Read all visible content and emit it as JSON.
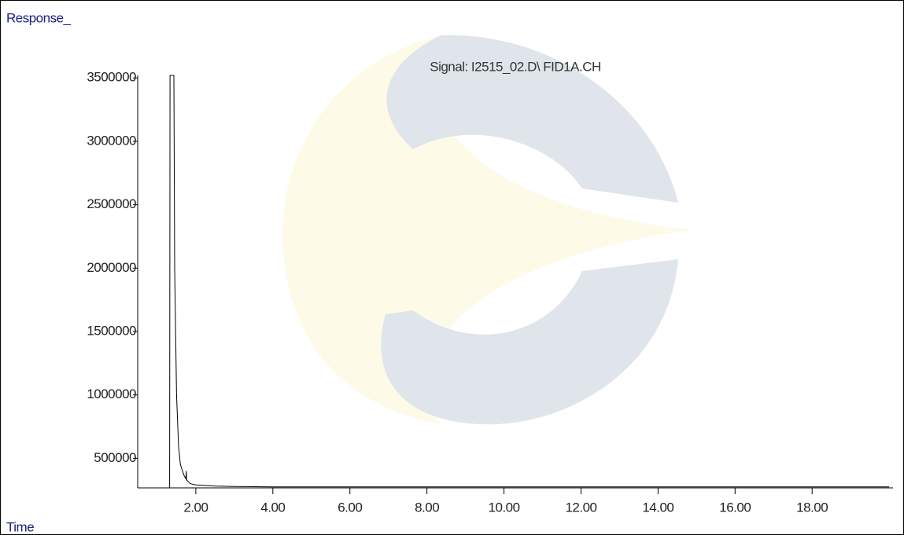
{
  "chart_data": {
    "type": "line",
    "title": "Signal: I2515_02.D\\ FID1A.CH",
    "y_label": "Response_",
    "x_label": "Time",
    "color": "#000000",
    "x": [
      1.32,
      1.33,
      1.43,
      1.45,
      1.5,
      1.55,
      1.6,
      1.7,
      1.74,
      1.75,
      1.76,
      1.85,
      2.0,
      2.5,
      3.0,
      4.0,
      6.0,
      8.0,
      10.0,
      14.0,
      20.0
    ],
    "series": [
      {
        "name": "FID1A",
        "color": "#000000",
        "values": [
          270000,
          3520000,
          3520000,
          2000000,
          1000000,
          600000,
          450000,
          360000,
          340000,
          400000,
          330000,
          300000,
          290000,
          280000,
          277000,
          275000,
          274000,
          274000,
          274000,
          274000,
          274000
        ]
      }
    ],
    "xlim": [
      0.49,
      20.1
    ],
    "ylim": [
      266667,
      3520000
    ],
    "xticks": [
      {
        "value": 2,
        "label": "2.00"
      },
      {
        "value": 4,
        "label": "4.00"
      },
      {
        "value": 6,
        "label": "6.00"
      },
      {
        "value": 8,
        "label": "8.00"
      },
      {
        "value": 10,
        "label": "10.00"
      },
      {
        "value": 12,
        "label": "12.00"
      },
      {
        "value": 14,
        "label": "14.00"
      },
      {
        "value": 16,
        "label": "16.00"
      },
      {
        "value": 18,
        "label": "18.00"
      }
    ],
    "yticks": [
      500000,
      1000000,
      1500000,
      2000000,
      2500000,
      3000000,
      3500000
    ]
  }
}
